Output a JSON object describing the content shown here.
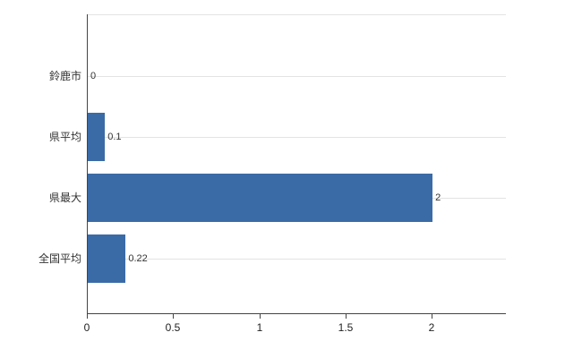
{
  "chart_data": {
    "type": "bar",
    "orientation": "horizontal",
    "title": "",
    "xlabel": "",
    "ylabel": "",
    "categories": [
      "鈴鹿市",
      "県平均",
      "県最大",
      "全国平均"
    ],
    "values": [
      0,
      0.1,
      2,
      0.22
    ],
    "value_labels": [
      "0",
      "0.1",
      "2",
      "0.22"
    ],
    "x_ticks": [
      0,
      0.5,
      1,
      1.5,
      2
    ],
    "x_tick_labels": [
      "0",
      "0.5",
      "1",
      "1.5",
      "2"
    ],
    "xlim": [
      0,
      2.43
    ],
    "grid": "horizontal category lines, on",
    "legend": "none",
    "colors": {
      "bar": "#3b6ba6",
      "axis": "#444444",
      "grid": "#e3e3e3",
      "text": "#333333",
      "background": "#ffffff"
    }
  }
}
